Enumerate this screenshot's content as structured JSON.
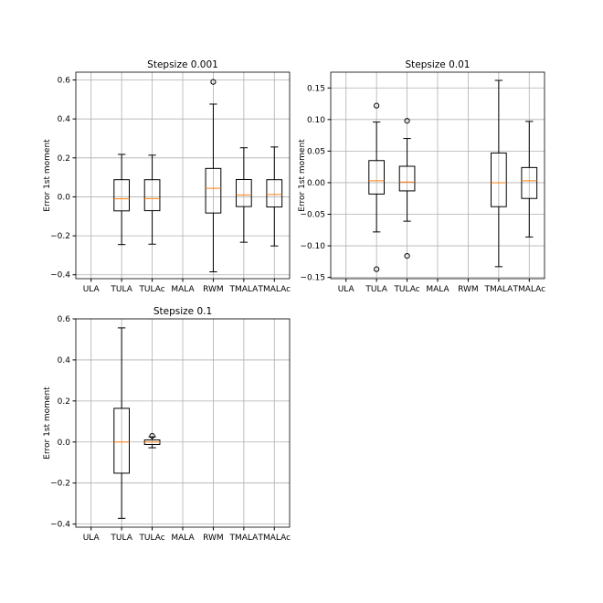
{
  "chart_data": [
    {
      "type": "box",
      "title": "Stepsize 0.001",
      "xlabel": "",
      "ylabel": "Error 1st moment",
      "categories": [
        "ULA",
        "TULA",
        "TULAc",
        "MALA",
        "RWM",
        "TMALA",
        "TMALAc"
      ],
      "ylim": [
        -0.42,
        0.64
      ],
      "yticks": [
        -0.4,
        -0.2,
        0.0,
        0.2,
        0.4,
        0.6
      ],
      "ytick_labels": [
        "−0.4",
        "−0.2",
        "0.0",
        "0.2",
        "0.4",
        "0.6"
      ],
      "grid": true,
      "boxes": [
        null,
        {
          "whislo": -0.245,
          "q1": -0.072,
          "med": -0.01,
          "q3": 0.088,
          "whishi": 0.218,
          "fliers": []
        },
        {
          "whislo": -0.243,
          "q1": -0.071,
          "med": -0.009,
          "q3": 0.088,
          "whishi": 0.214,
          "fliers": []
        },
        null,
        {
          "whislo": -0.385,
          "q1": -0.083,
          "med": 0.044,
          "q3": 0.146,
          "whishi": 0.476,
          "fliers": [
            0.59
          ]
        },
        {
          "whislo": -0.233,
          "q1": -0.05,
          "med": 0.01,
          "q3": 0.089,
          "whishi": 0.252,
          "fliers": []
        },
        {
          "whislo": -0.252,
          "q1": -0.052,
          "med": 0.012,
          "q3": 0.088,
          "whishi": 0.256,
          "fliers": []
        }
      ]
    },
    {
      "type": "box",
      "title": "Stepsize 0.01",
      "xlabel": "",
      "ylabel": "Error 1st moment",
      "categories": [
        "ULA",
        "TULA",
        "TULAc",
        "MALA",
        "RWM",
        "TMALA",
        "TMALAc"
      ],
      "ylim": [
        -0.152,
        0.175
      ],
      "yticks": [
        -0.15,
        -0.1,
        -0.05,
        0.0,
        0.05,
        0.1,
        0.15
      ],
      "ytick_labels": [
        "−0.15",
        "−0.10",
        "−0.05",
        "0.00",
        "0.05",
        "0.10",
        "0.15"
      ],
      "grid": true,
      "boxes": [
        null,
        {
          "whislo": -0.078,
          "q1": -0.018,
          "med": 0.003,
          "q3": 0.035,
          "whishi": 0.096,
          "fliers": [
            0.122,
            -0.137
          ]
        },
        {
          "whislo": -0.061,
          "q1": -0.013,
          "med": 0.001,
          "q3": 0.026,
          "whishi": 0.07,
          "fliers": [
            0.098,
            -0.116
          ]
        },
        null,
        null,
        {
          "whislo": -0.133,
          "q1": -0.038,
          "med": 0.0,
          "q3": 0.047,
          "whishi": 0.162,
          "fliers": []
        },
        {
          "whislo": -0.086,
          "q1": -0.025,
          "med": 0.003,
          "q3": 0.024,
          "whishi": 0.097,
          "fliers": []
        }
      ]
    },
    {
      "type": "box",
      "title": "Stepsize 0.1",
      "xlabel": "",
      "ylabel": "Error 1st moment",
      "categories": [
        "ULA",
        "TULA",
        "TULAc",
        "MALA",
        "RWM",
        "TMALA",
        "TMALAc"
      ],
      "ylim": [
        -0.415,
        0.6
      ],
      "yticks": [
        -0.4,
        -0.2,
        0.0,
        0.2,
        0.4,
        0.6
      ],
      "ytick_labels": [
        "−0.4",
        "−0.2",
        "0.0",
        "0.2",
        "0.4",
        "0.6"
      ],
      "grid": true,
      "boxes": [
        null,
        {
          "whislo": -0.372,
          "q1": -0.152,
          "med": 0.0,
          "q3": 0.164,
          "whishi": 0.556,
          "fliers": []
        },
        {
          "whislo": -0.028,
          "q1": -0.012,
          "med": 0.0,
          "q3": 0.01,
          "whishi": 0.025,
          "fliers": [
            0.03
          ]
        },
        null,
        null,
        null,
        null
      ]
    }
  ]
}
